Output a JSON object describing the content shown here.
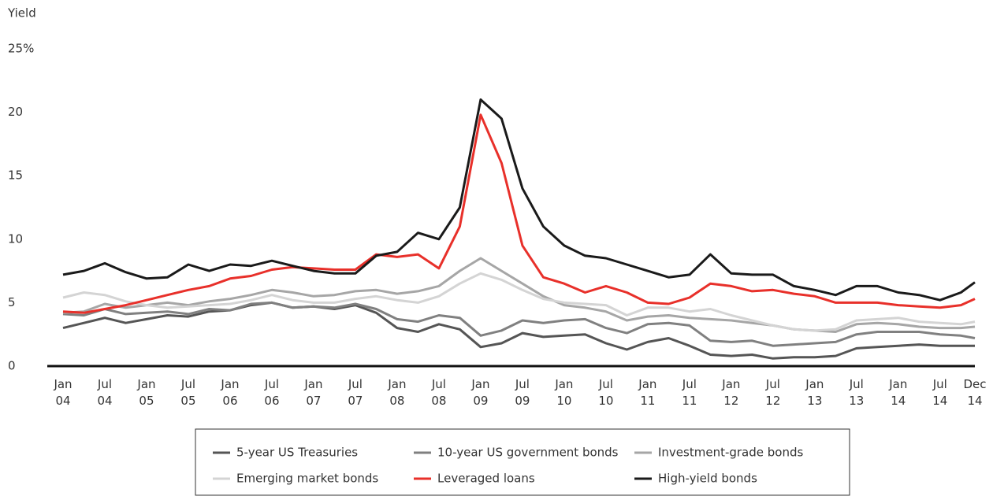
{
  "chart_data": {
    "type": "line",
    "y_label": "Yield",
    "xlim": [
      2004,
      2014.917
    ],
    "xticks": [
      {
        "value": 2004,
        "label": "Jan 04"
      },
      {
        "value": 2004.5,
        "label": "Jul 04"
      },
      {
        "value": 2005,
        "label": "Jan 05"
      },
      {
        "value": 2005.5,
        "label": "Jul 05"
      },
      {
        "value": 2006,
        "label": "Jan 06"
      },
      {
        "value": 2006.5,
        "label": "Jul 06"
      },
      {
        "value": 2007,
        "label": "Jan 07"
      },
      {
        "value": 2007.5,
        "label": "Jul 07"
      },
      {
        "value": 2008,
        "label": "Jan 08"
      },
      {
        "value": 2008.5,
        "label": "Jul 08"
      },
      {
        "value": 2009,
        "label": "Jan 09"
      },
      {
        "value": 2009.5,
        "label": "Jul 09"
      },
      {
        "value": 2010,
        "label": "Jan 10"
      },
      {
        "value": 2010.5,
        "label": "Jul 10"
      },
      {
        "value": 2011,
        "label": "Jan 11"
      },
      {
        "value": 2011.5,
        "label": "Jul 11"
      },
      {
        "value": 2012,
        "label": "Jan 12"
      },
      {
        "value": 2012.5,
        "label": "Jul 12"
      },
      {
        "value": 2013,
        "label": "Jan 13"
      },
      {
        "value": 2013.5,
        "label": "Jul 13"
      },
      {
        "value": 2014,
        "label": "Jan 14"
      },
      {
        "value": 2014.5,
        "label": "Jul 14"
      },
      {
        "value": 2014.917,
        "label": "Dec 14"
      }
    ],
    "ylim": [
      0,
      25
    ],
    "yticks": [
      0,
      5,
      10,
      15,
      20,
      {
        "value": 25,
        "label": "25%"
      }
    ],
    "x": [
      2004,
      2004.25,
      2004.5,
      2004.75,
      2005,
      2005.25,
      2005.5,
      2005.75,
      2006,
      2006.25,
      2006.5,
      2006.75,
      2007,
      2007.25,
      2007.5,
      2007.75,
      2008,
      2008.25,
      2008.5,
      2008.75,
      2009,
      2009.25,
      2009.5,
      2009.75,
      2010,
      2010.25,
      2010.5,
      2010.75,
      2011,
      2011.25,
      2011.5,
      2011.75,
      2012,
      2012.25,
      2012.5,
      2012.75,
      2013,
      2013.25,
      2013.5,
      2013.75,
      2014,
      2014.25,
      2014.5,
      2014.75,
      2014.917
    ],
    "series": [
      {
        "name": "5-year US Treasuries",
        "color": "#555555",
        "values": [
          3.0,
          3.4,
          3.8,
          3.4,
          3.7,
          4.0,
          3.9,
          4.3,
          4.4,
          4.8,
          5.0,
          4.6,
          4.7,
          4.5,
          4.8,
          4.2,
          3.0,
          2.7,
          3.3,
          2.9,
          1.5,
          1.8,
          2.6,
          2.3,
          2.4,
          2.5,
          1.8,
          1.3,
          1.9,
          2.2,
          1.6,
          0.9,
          0.8,
          0.9,
          0.6,
          0.7,
          0.7,
          0.8,
          1.4,
          1.5,
          1.6,
          1.7,
          1.6,
          1.6,
          1.6
        ]
      },
      {
        "name": "10-year US government bonds",
        "color": "#808080",
        "values": [
          4.1,
          4.0,
          4.5,
          4.1,
          4.2,
          4.3,
          4.1,
          4.5,
          4.4,
          4.9,
          5.0,
          4.6,
          4.7,
          4.6,
          4.9,
          4.5,
          3.7,
          3.5,
          4.0,
          3.8,
          2.4,
          2.8,
          3.6,
          3.4,
          3.6,
          3.7,
          3.0,
          2.6,
          3.3,
          3.4,
          3.2,
          2.0,
          1.9,
          2.0,
          1.6,
          1.7,
          1.8,
          1.9,
          2.5,
          2.7,
          2.7,
          2.7,
          2.5,
          2.4,
          2.2
        ]
      },
      {
        "name": "Investment-grade bonds",
        "color": "#a6a6a6",
        "values": [
          4.2,
          4.3,
          4.9,
          4.6,
          4.8,
          5.0,
          4.8,
          5.1,
          5.3,
          5.6,
          6.0,
          5.8,
          5.5,
          5.6,
          5.9,
          6.0,
          5.7,
          5.9,
          6.3,
          7.5,
          8.5,
          7.5,
          6.5,
          5.5,
          4.8,
          4.6,
          4.3,
          3.6,
          3.9,
          4.0,
          3.8,
          3.7,
          3.6,
          3.4,
          3.2,
          2.9,
          2.8,
          2.7,
          3.3,
          3.4,
          3.3,
          3.1,
          3.0,
          3.0,
          3.1
        ]
      },
      {
        "name": "Emerging market bonds",
        "color": "#d4d4d4",
        "values": [
          5.4,
          5.8,
          5.6,
          5.1,
          4.8,
          4.6,
          4.7,
          4.8,
          4.9,
          5.2,
          5.6,
          5.2,
          5.0,
          5.0,
          5.3,
          5.5,
          5.2,
          5.0,
          5.5,
          6.5,
          7.3,
          6.8,
          6.0,
          5.3,
          5.0,
          4.9,
          4.8,
          4.0,
          4.6,
          4.6,
          4.3,
          4.5,
          4.0,
          3.6,
          3.2,
          2.9,
          2.8,
          2.9,
          3.6,
          3.7,
          3.8,
          3.5,
          3.4,
          3.3,
          3.5
        ]
      },
      {
        "name": "Leveraged loans",
        "color": "#e8302a",
        "values": [
          4.3,
          4.2,
          4.5,
          4.8,
          5.2,
          5.6,
          6.0,
          6.3,
          6.9,
          7.1,
          7.6,
          7.8,
          7.7,
          7.6,
          7.6,
          8.8,
          8.6,
          8.8,
          7.7,
          11.0,
          19.8,
          16.0,
          9.5,
          7.0,
          6.5,
          5.8,
          6.3,
          5.8,
          5.0,
          4.9,
          5.4,
          6.5,
          6.3,
          5.9,
          6.0,
          5.7,
          5.5,
          5.0,
          5.0,
          5.0,
          4.8,
          4.7,
          4.6,
          4.8,
          5.3
        ]
      },
      {
        "name": "High-yield bonds",
        "color": "#1a1a1a",
        "values": [
          7.2,
          7.5,
          8.1,
          7.4,
          6.9,
          7.0,
          8.0,
          7.5,
          8.0,
          7.9,
          8.3,
          7.9,
          7.5,
          7.3,
          7.3,
          8.7,
          9.0,
          10.5,
          10.0,
          12.5,
          21.0,
          19.5,
          14.0,
          11.0,
          9.5,
          8.7,
          8.5,
          8.0,
          7.5,
          7.0,
          7.2,
          8.8,
          7.3,
          7.2,
          7.2,
          6.3,
          6.0,
          5.6,
          6.3,
          6.3,
          5.8,
          5.6,
          5.2,
          5.8,
          6.6
        ]
      }
    ]
  }
}
